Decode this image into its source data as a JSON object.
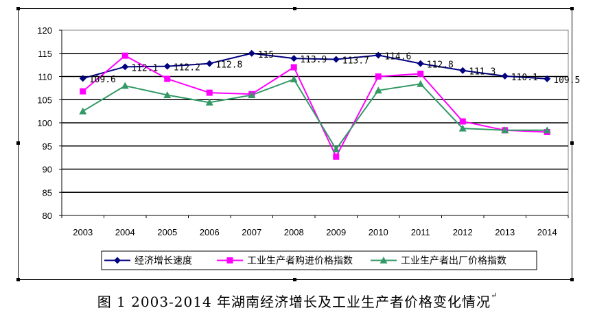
{
  "chart_data": {
    "type": "line",
    "title": "",
    "xlabel": "",
    "ylabel": "",
    "categories": [
      "2003",
      "2004",
      "2005",
      "2006",
      "2007",
      "2008",
      "2009",
      "2010",
      "2011",
      "2012",
      "2013",
      "2014"
    ],
    "ylim": [
      80,
      120
    ],
    "yticks": [
      "80",
      "85",
      "90",
      "95",
      "100",
      "105",
      "110",
      "115",
      "120"
    ],
    "grid": true,
    "legend_position": "bottom",
    "series": [
      {
        "name": "经济增长速度",
        "color": "#000080",
        "marker": "diamond",
        "values": [
          109.6,
          112.1,
          112.2,
          112.8,
          115,
          113.9,
          113.7,
          114.6,
          112.8,
          111.3,
          110.1,
          109.5
        ]
      },
      {
        "name": "工业生产者购进价格指数",
        "color": "#ff00ff",
        "marker": "square",
        "values": [
          106.8,
          114.5,
          109.5,
          106.5,
          106.2,
          112.0,
          92.7,
          110.0,
          110.6,
          100.3,
          98.4,
          98.0
        ]
      },
      {
        "name": "工业生产者出厂价格指数",
        "color": "#339966",
        "marker": "triangle",
        "values": [
          102.5,
          108.0,
          106.0,
          104.4,
          106.0,
          109.4,
          94.3,
          107.0,
          108.4,
          98.8,
          98.4,
          98.4
        ]
      }
    ],
    "data_labels": {
      "series_index": 0,
      "labels": [
        "109.6",
        "112.1",
        "112.2",
        "112.8",
        "115",
        "113.9",
        "113.7",
        "114.6",
        "112.8",
        "111.3",
        "110.1",
        "109.5"
      ]
    }
  },
  "caption": {
    "text": "图 1  2003-2014 年湖南经济增长及工业生产者价格变化情况",
    "mark": "↵"
  },
  "colors": {
    "plot_background": "#ffffff",
    "gridline": "#000000",
    "plot_border": "#808080"
  }
}
